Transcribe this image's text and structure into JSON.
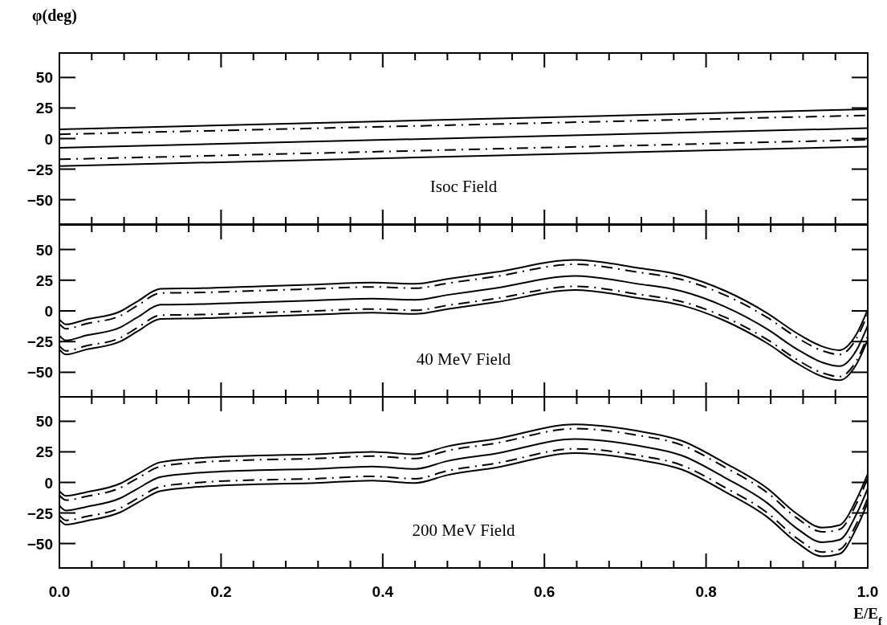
{
  "chart_data": [
    {
      "type": "line",
      "ylabel": "φ(deg)",
      "annotations": [
        "Isoc Field"
      ],
      "tick_labels": "y",
      "xlim": [
        0,
        1
      ],
      "ylim": [
        -70,
        70
      ],
      "yticks": [
        -50,
        -25,
        0,
        25,
        50
      ],
      "xticks": [
        {
          "value": 0,
          "label": null
        },
        {
          "value": 0.04,
          "label": null
        },
        {
          "value": 0.08,
          "label": null
        },
        {
          "value": 0.12,
          "label": null
        },
        {
          "value": 0.16,
          "label": null
        },
        {
          "value": 0.2,
          "label": null
        },
        {
          "value": 0.24,
          "label": null
        },
        {
          "value": 0.28,
          "label": null
        },
        {
          "value": 0.32,
          "label": null
        },
        {
          "value": 0.36,
          "label": null
        },
        {
          "value": 0.4,
          "label": null
        },
        {
          "value": 0.44,
          "label": null
        },
        {
          "value": 0.48,
          "label": null
        },
        {
          "value": 0.52,
          "label": null
        },
        {
          "value": 0.56,
          "label": null
        },
        {
          "value": 0.6,
          "label": null
        },
        {
          "value": 0.64,
          "label": null
        },
        {
          "value": 0.68,
          "label": null
        },
        {
          "value": 0.72,
          "label": null
        },
        {
          "value": 0.76,
          "label": null
        },
        {
          "value": 0.8,
          "label": null
        },
        {
          "value": 0.84,
          "label": null
        },
        {
          "value": 0.88,
          "label": null
        },
        {
          "value": 0.92,
          "label": null
        },
        {
          "value": 0.96,
          "label": null
        },
        {
          "value": 1,
          "label": null
        }
      ],
      "x": [
        0,
        1
      ],
      "series": [
        {
          "color": "#000000",
          "line_style": "solid",
          "values": [
            7.5,
            24
          ]
        },
        {
          "color": "#000000",
          "line_style": "dashed",
          "values": [
            3.5,
            19
          ]
        },
        {
          "color": "#000000",
          "line_style": "solid",
          "values": [
            -7.5,
            8.5
          ]
        },
        {
          "color": "#000000",
          "line_style": "dashed",
          "values": [
            -17,
            -1
          ]
        },
        {
          "color": "#000000",
          "line_style": "solid",
          "values": [
            -22.5,
            -6.5
          ]
        }
      ]
    },
    {
      "type": "line",
      "annotations": [
        "40 MeV Field"
      ],
      "tick_labels": "y",
      "xlim": [
        0,
        1
      ],
      "ylim": [
        -70,
        70
      ],
      "yticks": [
        -50,
        -25,
        0,
        25,
        50
      ],
      "xticks": [
        {
          "value": 0,
          "label": null
        },
        {
          "value": 0.04,
          "label": null
        },
        {
          "value": 0.08,
          "label": null
        },
        {
          "value": 0.12,
          "label": null
        },
        {
          "value": 0.16,
          "label": null
        },
        {
          "value": 0.2,
          "label": null
        },
        {
          "value": 0.24,
          "label": null
        },
        {
          "value": 0.28,
          "label": null
        },
        {
          "value": 0.32,
          "label": null
        },
        {
          "value": 0.36,
          "label": null
        },
        {
          "value": 0.4,
          "label": null
        },
        {
          "value": 0.44,
          "label": null
        },
        {
          "value": 0.48,
          "label": null
        },
        {
          "value": 0.52,
          "label": null
        },
        {
          "value": 0.56,
          "label": null
        },
        {
          "value": 0.6,
          "label": null
        },
        {
          "value": 0.64,
          "label": null
        },
        {
          "value": 0.68,
          "label": null
        },
        {
          "value": 0.72,
          "label": null
        },
        {
          "value": 0.76,
          "label": null
        },
        {
          "value": 0.8,
          "label": null
        },
        {
          "value": 0.84,
          "label": null
        },
        {
          "value": 0.88,
          "label": null
        },
        {
          "value": 0.92,
          "label": null
        },
        {
          "value": 0.96,
          "label": null
        },
        {
          "value": 1,
          "label": null
        }
      ],
      "x": [
        0,
        0.008,
        0.033,
        0.075,
        0.097,
        0.125,
        0.175,
        0.246,
        0.317,
        0.387,
        0.44,
        0.48,
        0.539,
        0.638,
        0.716,
        0.77,
        0.823,
        0.876,
        0.912,
        0.944,
        0.965,
        0.986,
        1
      ],
      "series": [
        {
          "color": "#000000",
          "line_style": "solid",
          "values": [
            -7,
            -11,
            -7,
            -0.5,
            8,
            18,
            18.5,
            20,
            21.5,
            23,
            22,
            26,
            31.5,
            41.5,
            35,
            29,
            16.5,
            -2,
            -18,
            -29,
            -32,
            -19,
            1
          ]
        },
        {
          "color": "#000000",
          "line_style": "dashed",
          "values": [
            -10.5,
            -14.5,
            -10.5,
            -4,
            4.5,
            14.5,
            15,
            16.5,
            18,
            19.5,
            18.5,
            22.5,
            28,
            38,
            31.5,
            25.5,
            13,
            -5.5,
            -21.5,
            -32.5,
            -35.5,
            -22.5,
            -2.5
          ]
        },
        {
          "color": "#000000",
          "line_style": "solid",
          "values": [
            -20,
            -24,
            -20,
            -13.5,
            -5,
            5,
            5.5,
            7,
            8.5,
            10,
            9,
            13,
            18.5,
            28.5,
            22,
            16,
            3.5,
            -15,
            -31,
            -42,
            -45,
            -32,
            -12
          ]
        },
        {
          "color": "#000000",
          "line_style": "dashed",
          "values": [
            -28.5,
            -32.5,
            -28.5,
            -22,
            -13.5,
            -3.5,
            -3,
            -1.5,
            0,
            1.5,
            0.5,
            4.5,
            10,
            20,
            13.5,
            7.5,
            -5,
            -23.5,
            -39.5,
            -50.5,
            -53.5,
            -40.5,
            -20.5
          ]
        },
        {
          "color": "#000000",
          "line_style": "solid",
          "values": [
            -31.5,
            -35.5,
            -31.5,
            -25,
            -16.5,
            -6.5,
            -6,
            -4.5,
            -3,
            -1.5,
            -2.5,
            1.5,
            7,
            17,
            10.5,
            4.5,
            -8,
            -26.5,
            -42.5,
            -53.5,
            -56.5,
            -43.5,
            -23.5
          ]
        }
      ]
    },
    {
      "type": "line",
      "annotations": [
        "200 MeV Field"
      ],
      "xlabel": "E/E$_{f}$",
      "xlim": [
        0,
        1
      ],
      "ylim": [
        -70,
        70
      ],
      "xticks": [
        {
          "value": 0,
          "label": "0.0"
        },
        {
          "value": 0.04,
          "label": null
        },
        {
          "value": 0.08,
          "label": null
        },
        {
          "value": 0.12,
          "label": null
        },
        {
          "value": 0.16,
          "label": null
        },
        {
          "value": 0.2,
          "label": "0.2"
        },
        {
          "value": 0.24,
          "label": null
        },
        {
          "value": 0.28,
          "label": null
        },
        {
          "value": 0.32,
          "label": null
        },
        {
          "value": 0.36,
          "label": null
        },
        {
          "value": 0.4,
          "label": "0.4"
        },
        {
          "value": 0.44,
          "label": null
        },
        {
          "value": 0.48,
          "label": null
        },
        {
          "value": 0.52,
          "label": null
        },
        {
          "value": 0.56,
          "label": null
        },
        {
          "value": 0.6,
          "label": "0.6"
        },
        {
          "value": 0.64,
          "label": null
        },
        {
          "value": 0.68,
          "label": null
        },
        {
          "value": 0.72,
          "label": null
        },
        {
          "value": 0.76,
          "label": null
        },
        {
          "value": 0.8,
          "label": "0.8"
        },
        {
          "value": 0.84,
          "label": null
        },
        {
          "value": 0.88,
          "label": null
        },
        {
          "value": 0.92,
          "label": null
        },
        {
          "value": 0.96,
          "label": null
        },
        {
          "value": 1,
          "label": "1.0"
        }
      ],
      "yticks": [
        -50,
        -25,
        0,
        25,
        50
      ],
      "x": [
        0,
        0.008,
        0.033,
        0.075,
        0.097,
        0.125,
        0.175,
        0.246,
        0.317,
        0.387,
        0.44,
        0.48,
        0.539,
        0.638,
        0.716,
        0.77,
        0.823,
        0.876,
        0.912,
        0.944,
        0.965,
        0.986,
        1
      ],
      "series": [
        {
          "color": "#000000",
          "line_style": "solid",
          "values": [
            -7,
            -11,
            -8,
            -1,
            7,
            16.5,
            20,
            22,
            23,
            25,
            23,
            29.5,
            35.5,
            47.5,
            42,
            34,
            16,
            -5,
            -25.5,
            -37,
            -35,
            -14,
            7
          ]
        },
        {
          "color": "#000000",
          "line_style": "dashed",
          "values": [
            -10.5,
            -14.5,
            -11.5,
            -4.5,
            3.5,
            13,
            16.5,
            18.5,
            19.5,
            21.5,
            19.5,
            26,
            32,
            44,
            38.5,
            30.5,
            12.5,
            -8.5,
            -29,
            -40.5,
            -38.5,
            -17.5,
            3.5
          ]
        },
        {
          "color": "#000000",
          "line_style": "solid",
          "values": [
            -19,
            -23,
            -20,
            -13,
            -5,
            4.5,
            8,
            10,
            11,
            13,
            11,
            17.5,
            23.5,
            35.5,
            30,
            22,
            4,
            -17,
            -37.5,
            -49,
            -47,
            -26,
            -5
          ]
        },
        {
          "color": "#000000",
          "line_style": "dashed",
          "values": [
            -27,
            -31,
            -28,
            -21,
            -13,
            -3.5,
            0,
            2,
            3,
            5,
            3,
            9.5,
            15.5,
            27.5,
            22,
            14,
            -4,
            -25,
            -45.5,
            -57,
            -55,
            -34,
            -13
          ]
        },
        {
          "color": "#000000",
          "line_style": "solid",
          "values": [
            -30.5,
            -34.5,
            -31.5,
            -24.5,
            -16.5,
            -7,
            -3.5,
            -1.5,
            -0.5,
            1.5,
            -0.5,
            6,
            12,
            24,
            18.5,
            10.5,
            -7.5,
            -28.5,
            -49,
            -60.5,
            -58.5,
            -37.5,
            -16.5
          ]
        }
      ]
    }
  ]
}
